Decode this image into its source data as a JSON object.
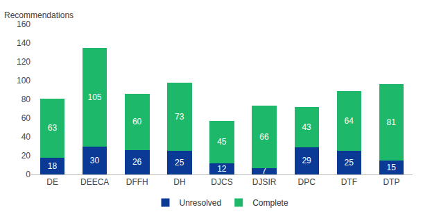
{
  "chart_data": {
    "type": "bar",
    "stacked": true,
    "y_label": "Recommendations",
    "categories": [
      "DE",
      "DEECA",
      "DFFH",
      "DH",
      "DJCS",
      "DJSIR",
      "DPC",
      "DTF",
      "DTP"
    ],
    "series": [
      {
        "name": "Unresolved",
        "color": "#0b3a96",
        "values": [
          18,
          30,
          26,
          25,
          12,
          7,
          29,
          25,
          15
        ]
      },
      {
        "name": "Complete",
        "color": "#1db86a",
        "values": [
          63,
          105,
          60,
          73,
          45,
          66,
          43,
          64,
          81
        ]
      }
    ],
    "ylim": [
      0,
      160
    ],
    "yticks": [
      0,
      20,
      40,
      60,
      80,
      100,
      120,
      140,
      160
    ],
    "grid": false,
    "legend": "bottom",
    "data_labels": true
  }
}
